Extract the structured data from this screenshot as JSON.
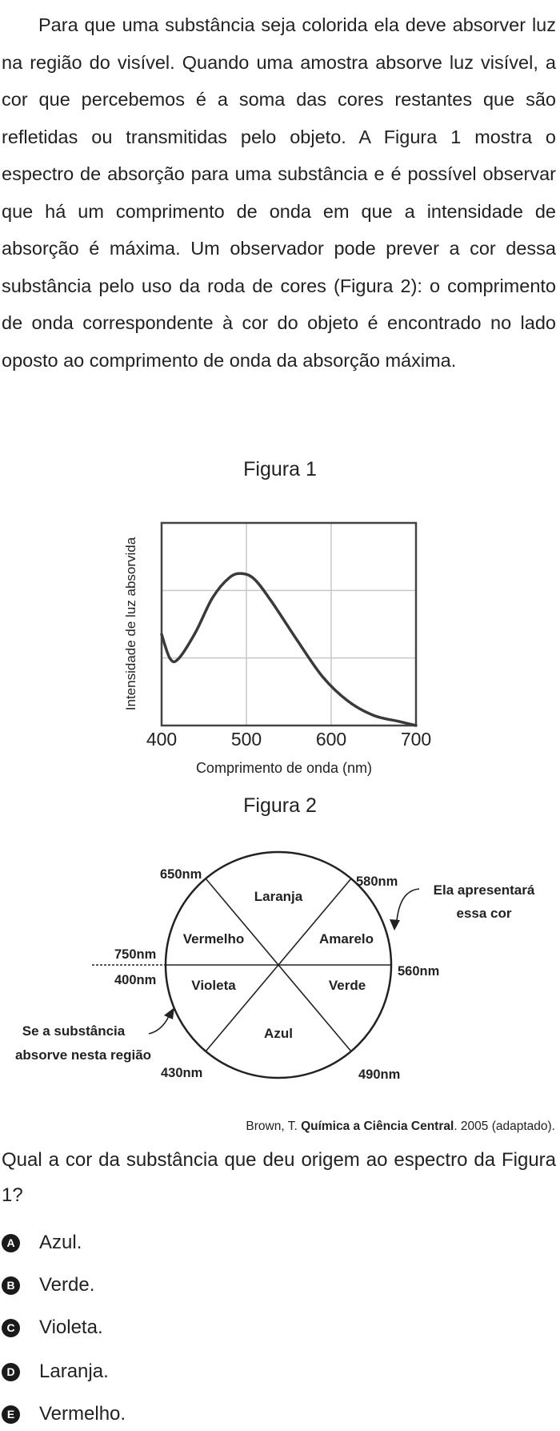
{
  "intro": "Para que uma substância seja colorida ela deve absorver luz na região do visível. Quando uma amostra absorve luz visível, a cor que percebemos é a soma das cores restantes que são refletidas ou transmitidas pelo objeto. A Figura 1 mostra o espectro de absorção para uma substância e é possível observar que há um comprimento de onda em que a intensidade de absorção é máxima. Um observador pode prever a cor dessa substância pelo uso da roda de cores (Figura 2): o comprimento de onda correspondente à cor do objeto é encontrado no lado oposto ao comprimento de onda da absorção máxima.",
  "figure1": {
    "title": "Figura 1",
    "chart_data": {
      "type": "line",
      "xlabel": "Comprimento de onda (nm)",
      "ylabel": "Intensidade de luz absorvida",
      "xlim": [
        400,
        700
      ],
      "xticks": [
        "400",
        "500",
        "600",
        "700"
      ],
      "grid": true,
      "series": [
        {
          "x": [
            400,
            410,
            420,
            440,
            460,
            480,
            495,
            510,
            530,
            560,
            590,
            620,
            650,
            680,
            700
          ],
          "y": [
            0.45,
            0.33,
            0.33,
            0.46,
            0.63,
            0.73,
            0.75,
            0.72,
            0.61,
            0.42,
            0.24,
            0.12,
            0.05,
            0.02,
            0.0
          ]
        }
      ]
    }
  },
  "figure2": {
    "title": "Figura 2",
    "sectors": [
      "Laranja",
      "Amarelo",
      "Verde",
      "Azul",
      "Violeta",
      "Vermelho"
    ],
    "boundaries": {
      "b650": "650nm",
      "b580": "580nm",
      "b560": "560nm",
      "b490": "490nm",
      "b430": "430nm",
      "b400": "400nm",
      "b750": "750nm"
    },
    "note_absorbs_line1": "Se a substância",
    "note_absorbs_line2": "absorve nesta região",
    "note_color_line1": "Ela apresentará",
    "note_color_line2": "essa cor"
  },
  "citation": {
    "author": "Brown, T. ",
    "title": "Química a Ciência Central",
    "rest": ". 2005 (adaptado)."
  },
  "question": "Qual a cor da substância que deu origem ao espectro da Figura 1?",
  "options": [
    {
      "letter": "A",
      "text": "Azul."
    },
    {
      "letter": "B",
      "text": "Verde."
    },
    {
      "letter": "C",
      "text": "Violeta."
    },
    {
      "letter": "D",
      "text": "Laranja."
    },
    {
      "letter": "E",
      "text": "Vermelho."
    }
  ]
}
